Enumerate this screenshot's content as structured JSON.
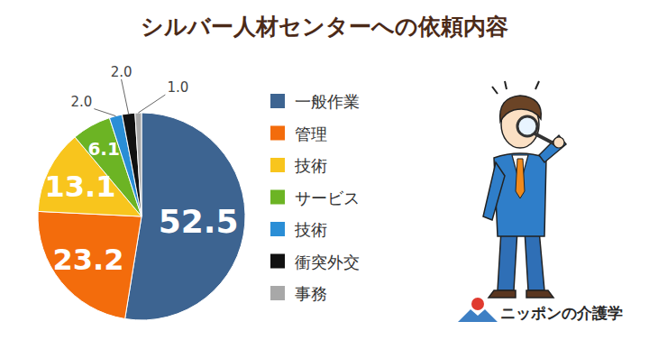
{
  "chart_data": {
    "type": "pie",
    "title": "シルバー人材センターへの依頼内容",
    "categories": [
      "一般作業",
      "管理",
      "技術",
      "サービス",
      "技術",
      "衝突外交",
      "事務"
    ],
    "values": [
      52.5,
      23.2,
      13.1,
      6.1,
      2.0,
      2.0,
      1.0
    ],
    "value_labels": [
      "52.5",
      "23.2",
      "13.1",
      "6.1",
      "2.0",
      "2.0",
      "1.0"
    ],
    "colors": [
      "#3d6491",
      "#f36c0c",
      "#f8c51d",
      "#6cb424",
      "#2a8ed6",
      "#111111",
      "#a8a8a8"
    ],
    "data_labels": true,
    "legend": "right"
  },
  "brand": {
    "text": "ニッポンの介護学"
  }
}
